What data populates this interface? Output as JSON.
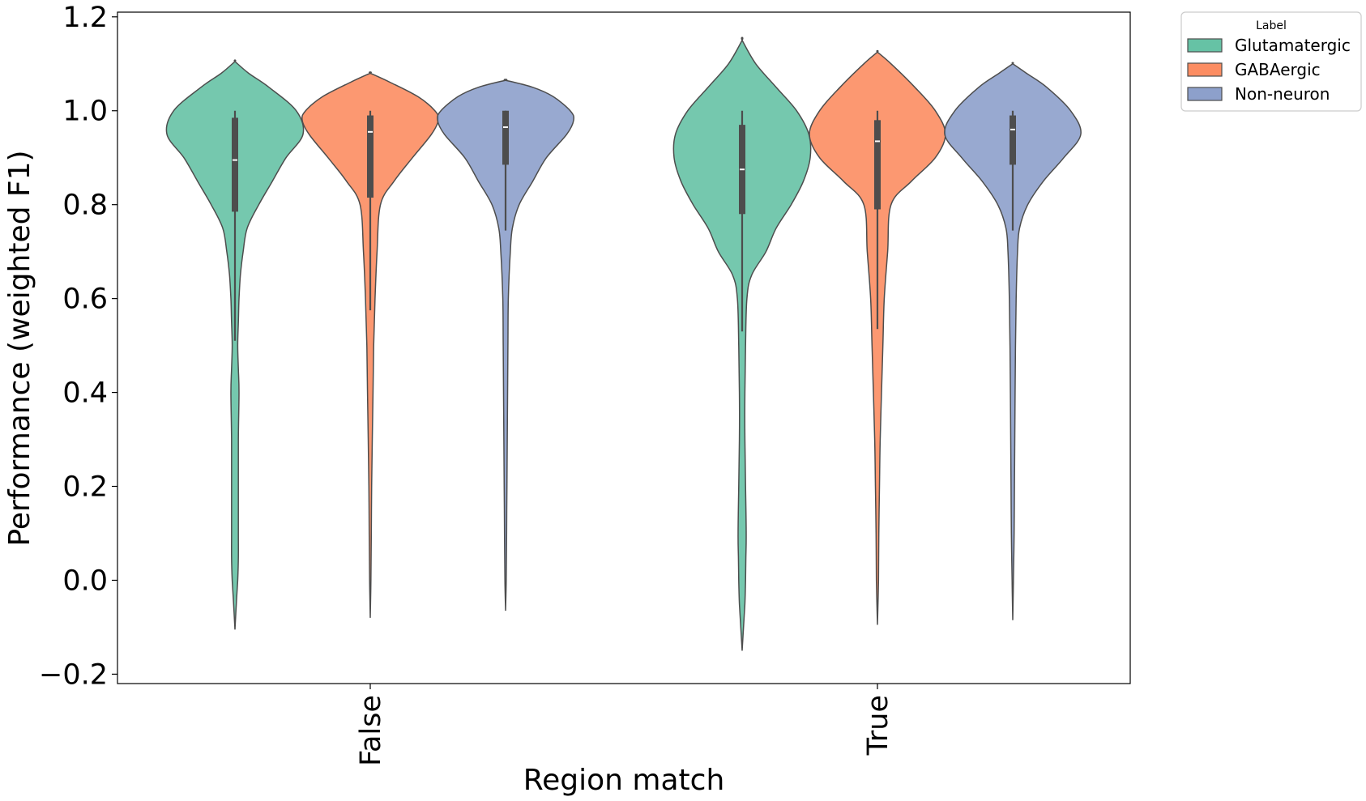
{
  "chart_data": {
    "type": "violin",
    "title": "",
    "xlabel": "Region match",
    "ylabel": "Performance (weighted F1)",
    "ylim": [
      -0.22,
      1.21
    ],
    "yticks": [
      -0.2,
      0.0,
      0.2,
      0.4,
      0.6,
      0.8,
      1.0,
      1.2
    ],
    "ytick_labels": [
      "−0.2",
      "0.0",
      "0.2",
      "0.4",
      "0.6",
      "0.8",
      "1.0",
      "1.2"
    ],
    "categories": [
      "False",
      "True"
    ],
    "grid": false,
    "legend": {
      "title": "Label",
      "placement": "outside-top-right",
      "entries": [
        "Glutamatergic",
        "GABAergic",
        "Non-neuron"
      ]
    },
    "series": [
      {
        "name": "Glutamatergic",
        "color": "#66c2a5",
        "violins": [
          {
            "category": "False",
            "extent": [
              -0.105,
              1.105
            ],
            "median": 0.895,
            "q1": 0.785,
            "q3": 0.985,
            "whisker_low": 0.51,
            "whisker_high": 1.0,
            "density": [
              [
                -0.105,
                0.0
              ],
              [
                -0.05,
                0.02
              ],
              [
                0.0,
                0.04
              ],
              [
                0.05,
                0.05
              ],
              [
                0.1,
                0.05
              ],
              [
                0.2,
                0.05
              ],
              [
                0.3,
                0.05
              ],
              [
                0.4,
                0.06
              ],
              [
                0.45,
                0.05
              ],
              [
                0.5,
                0.04
              ],
              [
                0.55,
                0.05
              ],
              [
                0.6,
                0.06
              ],
              [
                0.65,
                0.08
              ],
              [
                0.7,
                0.12
              ],
              [
                0.75,
                0.18
              ],
              [
                0.8,
                0.35
              ],
              [
                0.85,
                0.55
              ],
              [
                0.9,
                0.75
              ],
              [
                0.95,
                1.0
              ],
              [
                1.0,
                0.9
              ],
              [
                1.05,
                0.5
              ],
              [
                1.08,
                0.2
              ],
              [
                1.105,
                0.0
              ]
            ]
          },
          {
            "category": "True",
            "extent": [
              -0.15,
              1.15
            ],
            "median": 0.875,
            "q1": 0.78,
            "q3": 0.97,
            "whisker_low": 0.53,
            "whisker_high": 1.0,
            "density": [
              [
                -0.15,
                0.0
              ],
              [
                -0.1,
                0.02
              ],
              [
                -0.05,
                0.04
              ],
              [
                0.0,
                0.05
              ],
              [
                0.05,
                0.055
              ],
              [
                0.1,
                0.06
              ],
              [
                0.2,
                0.05
              ],
              [
                0.3,
                0.04
              ],
              [
                0.4,
                0.04
              ],
              [
                0.5,
                0.05
              ],
              [
                0.6,
                0.07
              ],
              [
                0.65,
                0.14
              ],
              [
                0.7,
                0.35
              ],
              [
                0.75,
                0.5
              ],
              [
                0.8,
                0.72
              ],
              [
                0.85,
                0.9
              ],
              [
                0.9,
                1.0
              ],
              [
                0.95,
                0.98
              ],
              [
                1.0,
                0.8
              ],
              [
                1.05,
                0.5
              ],
              [
                1.1,
                0.2
              ],
              [
                1.15,
                0.0
              ]
            ]
          }
        ]
      },
      {
        "name": "GABAergic",
        "color": "#fc8d62",
        "violins": [
          {
            "category": "False",
            "extent": [
              -0.08,
              1.08
            ],
            "median": 0.955,
            "q1": 0.815,
            "q3": 0.99,
            "whisker_low": 0.575,
            "whisker_high": 1.0,
            "density": [
              [
                -0.08,
                0.0
              ],
              [
                0.0,
                0.01
              ],
              [
                0.1,
                0.015
              ],
              [
                0.2,
                0.02
              ],
              [
                0.3,
                0.03
              ],
              [
                0.4,
                0.04
              ],
              [
                0.5,
                0.05
              ],
              [
                0.6,
                0.07
              ],
              [
                0.7,
                0.1
              ],
              [
                0.8,
                0.15
              ],
              [
                0.85,
                0.35
              ],
              [
                0.9,
                0.62
              ],
              [
                0.95,
                0.9
              ],
              [
                0.98,
                1.0
              ],
              [
                1.0,
                0.95
              ],
              [
                1.03,
                0.7
              ],
              [
                1.06,
                0.3
              ],
              [
                1.08,
                0.0
              ]
            ]
          },
          {
            "category": "True",
            "extent": [
              -0.095,
              1.125
            ],
            "median": 0.935,
            "q1": 0.79,
            "q3": 0.98,
            "whisker_low": 0.535,
            "whisker_high": 1.0,
            "density": [
              [
                -0.095,
                0.0
              ],
              [
                0.0,
                0.015
              ],
              [
                0.1,
                0.02
              ],
              [
                0.2,
                0.03
              ],
              [
                0.3,
                0.04
              ],
              [
                0.4,
                0.06
              ],
              [
                0.5,
                0.08
              ],
              [
                0.6,
                0.1
              ],
              [
                0.7,
                0.15
              ],
              [
                0.8,
                0.2
              ],
              [
                0.85,
                0.5
              ],
              [
                0.9,
                0.85
              ],
              [
                0.95,
                1.0
              ],
              [
                1.0,
                0.85
              ],
              [
                1.05,
                0.55
              ],
              [
                1.1,
                0.2
              ],
              [
                1.125,
                0.0
              ]
            ]
          }
        ]
      },
      {
        "name": "Non-neuron",
        "color": "#8da0cb",
        "violins": [
          {
            "category": "False",
            "extent": [
              -0.065,
              1.065
            ],
            "median": 0.965,
            "q1": 0.885,
            "q3": 1.0,
            "whisker_low": 0.745,
            "whisker_high": 1.0,
            "density": [
              [
                -0.065,
                0.0
              ],
              [
                0.0,
                0.01
              ],
              [
                0.1,
                0.015
              ],
              [
                0.2,
                0.02
              ],
              [
                0.3,
                0.025
              ],
              [
                0.4,
                0.03
              ],
              [
                0.5,
                0.035
              ],
              [
                0.6,
                0.04
              ],
              [
                0.7,
                0.07
              ],
              [
                0.75,
                0.1
              ],
              [
                0.8,
                0.2
              ],
              [
                0.85,
                0.4
              ],
              [
                0.9,
                0.6
              ],
              [
                0.95,
                0.9
              ],
              [
                0.98,
                1.0
              ],
              [
                1.0,
                0.95
              ],
              [
                1.03,
                0.7
              ],
              [
                1.05,
                0.4
              ],
              [
                1.065,
                0.0
              ]
            ]
          },
          {
            "category": "True",
            "extent": [
              -0.085,
              1.1
            ],
            "median": 0.96,
            "q1": 0.885,
            "q3": 0.99,
            "whisker_low": 0.745,
            "whisker_high": 1.0,
            "density": [
              [
                -0.085,
                0.0
              ],
              [
                0.0,
                0.01
              ],
              [
                0.1,
                0.02
              ],
              [
                0.2,
                0.025
              ],
              [
                0.3,
                0.03
              ],
              [
                0.4,
                0.035
              ],
              [
                0.5,
                0.04
              ],
              [
                0.6,
                0.05
              ],
              [
                0.7,
                0.07
              ],
              [
                0.75,
                0.1
              ],
              [
                0.8,
                0.22
              ],
              [
                0.85,
                0.45
              ],
              [
                0.9,
                0.75
              ],
              [
                0.95,
                1.0
              ],
              [
                1.0,
                0.85
              ],
              [
                1.05,
                0.5
              ],
              [
                1.08,
                0.2
              ],
              [
                1.1,
                0.0
              ]
            ]
          }
        ]
      }
    ]
  }
}
